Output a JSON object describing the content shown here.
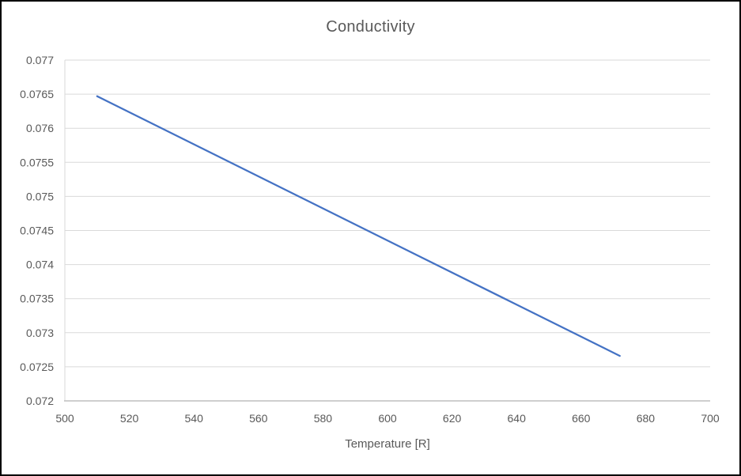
{
  "frame": {
    "background": "#ffffff",
    "border_color": "#000000"
  },
  "chart_data": {
    "type": "line",
    "title": "Conductivity",
    "xlabel": "Temperature [R]",
    "ylabel": "",
    "xlim": [
      500,
      700
    ],
    "ylim": [
      0.072,
      0.077
    ],
    "x_ticks": [
      500,
      520,
      540,
      560,
      580,
      600,
      620,
      640,
      660,
      680,
      700
    ],
    "y_ticks": [
      0.072,
      0.0725,
      0.073,
      0.0735,
      0.074,
      0.0745,
      0.075,
      0.0755,
      0.076,
      0.0765,
      0.077
    ],
    "grid": true,
    "legend": false,
    "series": [
      {
        "name": "conductivity",
        "color": "#4472C4",
        "points": [
          [
            510,
            0.07647
          ],
          [
            672,
            0.07266
          ]
        ]
      }
    ],
    "colors": {
      "gridline": "#D9D9D9",
      "axis_line": "#BFBFBF",
      "tick_text": "#595959",
      "title_text": "#595959"
    }
  }
}
